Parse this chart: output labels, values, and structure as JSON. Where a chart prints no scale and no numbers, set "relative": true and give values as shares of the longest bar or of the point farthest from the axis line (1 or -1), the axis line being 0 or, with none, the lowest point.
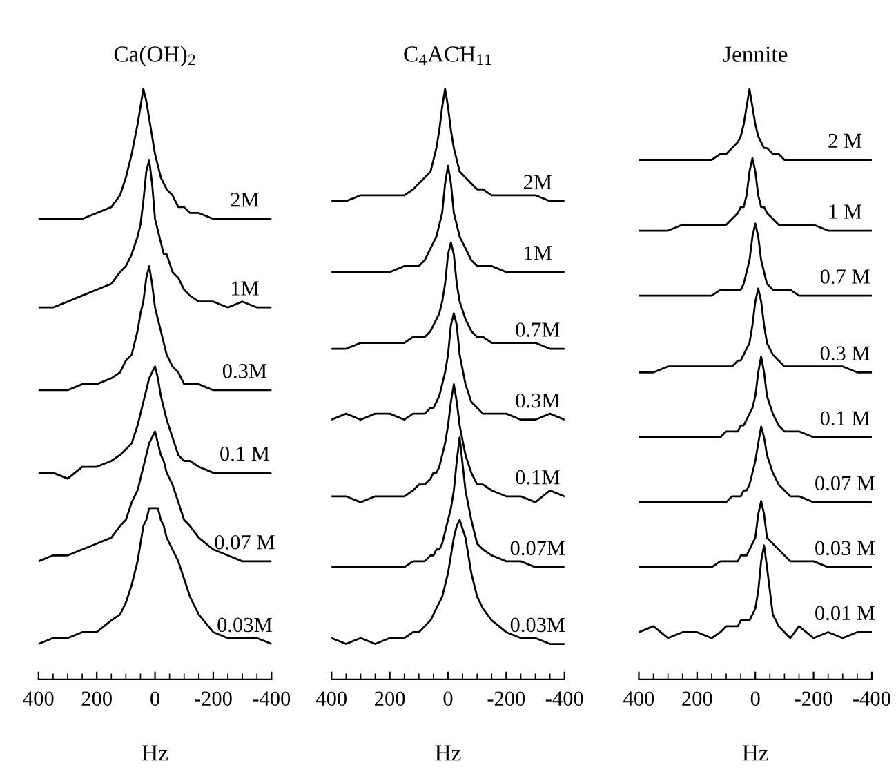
{
  "chart_data": [
    {
      "type": "line",
      "title": "Ca(OH)$_{2}$",
      "xlabel": "Hz",
      "relative": true,
      "legend": false,
      "grid": false,
      "x": [
        400,
        350,
        300,
        250,
        200,
        150,
        120,
        100,
        80,
        60,
        50,
        40,
        30,
        20,
        10,
        0,
        -10,
        -20,
        -30,
        -40,
        -60,
        -80,
        -100,
        -120,
        -150,
        -200,
        -250,
        -300,
        -350,
        -400
      ],
      "xlim": [
        400,
        -400
      ],
      "xticks": [
        400,
        {
          "value": 350,
          "label": null
        },
        {
          "value": 300,
          "label": null
        },
        {
          "value": 250,
          "label": null
        },
        200,
        {
          "value": 150,
          "label": null
        },
        {
          "value": 100,
          "label": null
        },
        {
          "value": 50,
          "label": null
        },
        0,
        {
          "value": -50,
          "label": null
        },
        {
          "value": -100,
          "label": null
        },
        {
          "value": -150,
          "label": null
        },
        -200,
        {
          "value": -250,
          "label": null
        },
        {
          "value": -300,
          "label": null
        },
        {
          "value": -350,
          "label": null
        },
        -400
      ],
      "tick_labels": "x",
      "series": [
        {
          "name": "2M",
          "color": "#000000",
          "values": [
            0.78,
            0.78,
            0.78,
            0.78,
            0.79,
            0.8,
            0.82,
            0.85,
            0.89,
            0.94,
            0.97,
            1.0,
            0.98,
            0.95,
            0.92,
            0.89,
            0.87,
            0.85,
            0.84,
            0.83,
            0.82,
            0.8,
            0.8,
            0.79,
            0.79,
            0.78,
            0.78,
            0.78,
            0.78,
            0.78
          ]
        },
        {
          "name": "1M",
          "color": "#000000",
          "values": [
            0.63,
            0.63,
            0.64,
            0.65,
            0.66,
            0.67,
            0.69,
            0.7,
            0.72,
            0.75,
            0.77,
            0.81,
            0.86,
            0.88,
            0.84,
            0.78,
            0.76,
            0.74,
            0.72,
            0.72,
            0.69,
            0.68,
            0.66,
            0.65,
            0.64,
            0.64,
            0.63,
            0.64,
            0.63,
            0.63
          ]
        },
        {
          "name": "0.3M",
          "color": "#000000",
          "values": [
            0.49,
            0.49,
            0.49,
            0.5,
            0.5,
            0.51,
            0.52,
            0.54,
            0.55,
            0.59,
            0.62,
            0.64,
            0.68,
            0.7,
            0.67,
            0.63,
            0.61,
            0.59,
            0.57,
            0.55,
            0.53,
            0.52,
            0.5,
            0.5,
            0.5,
            0.49,
            0.49,
            0.49,
            0.49,
            0.49
          ]
        },
        {
          "name": "0.1 M",
          "color": "#000000",
          "values": [
            0.35,
            0.35,
            0.34,
            0.36,
            0.36,
            0.37,
            0.38,
            0.39,
            0.4,
            0.43,
            0.45,
            0.47,
            0.49,
            0.51,
            0.52,
            0.53,
            0.51,
            0.48,
            0.46,
            0.44,
            0.41,
            0.38,
            0.37,
            0.37,
            0.36,
            0.35,
            0.35,
            0.35,
            0.35,
            0.35
          ]
        },
        {
          "name": "0.07 M",
          "color": "#000000",
          "values": [
            0.2,
            0.21,
            0.21,
            0.22,
            0.23,
            0.24,
            0.26,
            0.27,
            0.3,
            0.32,
            0.34,
            0.36,
            0.38,
            0.4,
            0.41,
            0.42,
            0.4,
            0.38,
            0.37,
            0.35,
            0.33,
            0.3,
            0.27,
            0.26,
            0.24,
            0.22,
            0.21,
            0.2,
            0.2,
            0.2
          ]
        },
        {
          "name": "0.03M",
          "color": "#000000",
          "values": [
            0.06,
            0.07,
            0.07,
            0.08,
            0.08,
            0.1,
            0.11,
            0.13,
            0.16,
            0.2,
            0.23,
            0.26,
            0.27,
            0.29,
            0.29,
            0.29,
            0.29,
            0.27,
            0.26,
            0.24,
            0.22,
            0.2,
            0.17,
            0.14,
            0.11,
            0.08,
            0.07,
            0.07,
            0.07,
            0.06
          ]
        }
      ]
    },
    {
      "type": "line",
      "title": "C$_{4}$AC̄H$_{11}$",
      "xlabel": "Hz",
      "relative": true,
      "legend": false,
      "grid": false,
      "x": [
        400,
        350,
        300,
        250,
        200,
        150,
        120,
        100,
        80,
        60,
        50,
        40,
        30,
        20,
        10,
        0,
        -10,
        -20,
        -30,
        -40,
        -60,
        -80,
        -100,
        -120,
        -150,
        -200,
        -250,
        -300,
        -350,
        -400
      ],
      "xlim": [
        400,
        -400
      ],
      "xticks": [
        400,
        {
          "value": 350,
          "label": null
        },
        {
          "value": 300,
          "label": null
        },
        {
          "value": 250,
          "label": null
        },
        200,
        {
          "value": 150,
          "label": null
        },
        {
          "value": 100,
          "label": null
        },
        {
          "value": 50,
          "label": null
        },
        0,
        {
          "value": -50,
          "label": null
        },
        {
          "value": -100,
          "label": null
        },
        {
          "value": -150,
          "label": null
        },
        -200,
        {
          "value": -250,
          "label": null
        },
        {
          "value": -300,
          "label": null
        },
        {
          "value": -350,
          "label": null
        },
        -400
      ],
      "tick_labels": "x",
      "series": [
        {
          "name": "2M",
          "color": "#000000",
          "values": [
            0.81,
            0.81,
            0.82,
            0.82,
            0.82,
            0.82,
            0.83,
            0.84,
            0.85,
            0.86,
            0.88,
            0.9,
            0.93,
            0.97,
            1.0,
            0.97,
            0.93,
            0.9,
            0.88,
            0.86,
            0.85,
            0.84,
            0.83,
            0.83,
            0.82,
            0.82,
            0.82,
            0.82,
            0.81,
            0.81
          ]
        },
        {
          "name": "1M",
          "color": "#000000",
          "values": [
            0.69,
            0.69,
            0.69,
            0.69,
            0.69,
            0.7,
            0.7,
            0.7,
            0.71,
            0.73,
            0.74,
            0.75,
            0.77,
            0.79,
            0.84,
            0.87,
            0.84,
            0.79,
            0.77,
            0.75,
            0.73,
            0.71,
            0.7,
            0.7,
            0.7,
            0.69,
            0.69,
            0.69,
            0.69,
            0.69
          ]
        },
        {
          "name": "0.7M",
          "color": "#000000",
          "values": [
            0.56,
            0.56,
            0.57,
            0.57,
            0.57,
            0.57,
            0.58,
            0.58,
            0.58,
            0.59,
            0.6,
            0.61,
            0.62,
            0.64,
            0.67,
            0.72,
            0.74,
            0.72,
            0.67,
            0.64,
            0.61,
            0.59,
            0.58,
            0.58,
            0.57,
            0.57,
            0.57,
            0.57,
            0.56,
            0.56
          ]
        },
        {
          "name": "0.3M",
          "color": "#000000",
          "values": [
            0.44,
            0.45,
            0.44,
            0.45,
            0.45,
            0.44,
            0.45,
            0.45,
            0.45,
            0.46,
            0.46,
            0.47,
            0.48,
            0.5,
            0.52,
            0.55,
            0.6,
            0.62,
            0.6,
            0.55,
            0.5,
            0.47,
            0.46,
            0.45,
            0.45,
            0.45,
            0.44,
            0.44,
            0.45,
            0.44
          ]
        },
        {
          "name": "0.1M",
          "color": "#000000",
          "values": [
            0.31,
            0.31,
            0.3,
            0.31,
            0.31,
            0.31,
            0.32,
            0.33,
            0.33,
            0.34,
            0.35,
            0.35,
            0.36,
            0.38,
            0.4,
            0.43,
            0.47,
            0.5,
            0.47,
            0.43,
            0.38,
            0.35,
            0.33,
            0.33,
            0.32,
            0.31,
            0.31,
            0.3,
            0.32,
            0.31
          ]
        },
        {
          "name": "0.07M",
          "color": "#000000",
          "values": [
            0.19,
            0.19,
            0.19,
            0.19,
            0.19,
            0.19,
            0.2,
            0.2,
            0.2,
            0.21,
            0.21,
            0.22,
            0.22,
            0.23,
            0.25,
            0.27,
            0.29,
            0.32,
            0.37,
            0.41,
            0.32,
            0.27,
            0.23,
            0.22,
            0.21,
            0.2,
            0.2,
            0.19,
            0.19,
            0.19
          ]
        },
        {
          "name": "0.03M",
          "color": "#000000",
          "values": [
            0.07,
            0.06,
            0.07,
            0.06,
            0.07,
            0.07,
            0.08,
            0.08,
            0.09,
            0.1,
            0.11,
            0.12,
            0.13,
            0.14,
            0.16,
            0.18,
            0.21,
            0.24,
            0.26,
            0.27,
            0.24,
            0.18,
            0.14,
            0.12,
            0.1,
            0.08,
            0.07,
            0.07,
            0.06,
            0.06
          ]
        }
      ]
    },
    {
      "type": "line",
      "title": "Jennite",
      "xlabel": "Hz",
      "relative": true,
      "legend": false,
      "grid": false,
      "x": [
        400,
        350,
        300,
        250,
        200,
        150,
        120,
        100,
        80,
        60,
        50,
        40,
        30,
        20,
        10,
        0,
        -10,
        -20,
        -30,
        -40,
        -60,
        -80,
        -100,
        -120,
        -150,
        -200,
        -250,
        -300,
        -350,
        -400
      ],
      "xlim": [
        400,
        -400
      ],
      "xticks": [
        400,
        {
          "value": 350,
          "label": null
        },
        {
          "value": 300,
          "label": null
        },
        {
          "value": 250,
          "label": null
        },
        200,
        {
          "value": 150,
          "label": null
        },
        {
          "value": 100,
          "label": null
        },
        {
          "value": 50,
          "label": null
        },
        0,
        {
          "value": -50,
          "label": null
        },
        {
          "value": -100,
          "label": null
        },
        {
          "value": -150,
          "label": null
        },
        -200,
        {
          "value": -250,
          "label": null
        },
        {
          "value": -300,
          "label": null
        },
        {
          "value": -350,
          "label": null
        },
        -400
      ],
      "tick_labels": "x",
      "series": [
        {
          "name": "2 M",
          "color": "#000000",
          "values": [
            0.88,
            0.88,
            0.88,
            0.88,
            0.88,
            0.88,
            0.89,
            0.89,
            0.9,
            0.91,
            0.92,
            0.94,
            0.97,
            1.0,
            0.97,
            0.94,
            0.92,
            0.91,
            0.9,
            0.9,
            0.89,
            0.89,
            0.88,
            0.88,
            0.88,
            0.88,
            0.88,
            0.88,
            0.88,
            0.88
          ]
        },
        {
          "name": "1 M",
          "color": "#000000",
          "values": [
            0.76,
            0.76,
            0.76,
            0.77,
            0.77,
            0.77,
            0.77,
            0.77,
            0.78,
            0.79,
            0.8,
            0.8,
            0.82,
            0.86,
            0.883,
            0.86,
            0.82,
            0.8,
            0.8,
            0.79,
            0.78,
            0.77,
            0.77,
            0.77,
            0.77,
            0.77,
            0.76,
            0.76,
            0.76,
            0.76
          ]
        },
        {
          "name": "0.7 M",
          "color": "#000000",
          "values": [
            0.65,
            0.65,
            0.65,
            0.65,
            0.65,
            0.65,
            0.66,
            0.66,
            0.66,
            0.66,
            0.66,
            0.67,
            0.69,
            0.71,
            0.75,
            0.772,
            0.75,
            0.71,
            0.69,
            0.67,
            0.66,
            0.66,
            0.66,
            0.66,
            0.65,
            0.65,
            0.65,
            0.65,
            0.65,
            0.65
          ]
        },
        {
          "name": "0.3 M",
          "color": "#000000",
          "values": [
            0.52,
            0.52,
            0.53,
            0.53,
            0.53,
            0.53,
            0.53,
            0.53,
            0.53,
            0.54,
            0.54,
            0.55,
            0.56,
            0.57,
            0.6,
            0.64,
            0.662,
            0.64,
            0.6,
            0.57,
            0.55,
            0.54,
            0.53,
            0.53,
            0.53,
            0.53,
            0.53,
            0.53,
            0.52,
            0.52
          ]
        },
        {
          "name": "0.1 M",
          "color": "#000000",
          "values": [
            0.41,
            0.41,
            0.41,
            0.41,
            0.41,
            0.41,
            0.41,
            0.42,
            0.42,
            0.42,
            0.43,
            0.43,
            0.44,
            0.45,
            0.46,
            0.48,
            0.52,
            0.547,
            0.52,
            0.48,
            0.45,
            0.43,
            0.42,
            0.42,
            0.42,
            0.41,
            0.41,
            0.41,
            0.41,
            0.41
          ]
        },
        {
          "name": "0.07 M",
          "color": "#000000",
          "values": [
            0.3,
            0.3,
            0.3,
            0.3,
            0.3,
            0.3,
            0.3,
            0.3,
            0.31,
            0.31,
            0.31,
            0.32,
            0.32,
            0.33,
            0.35,
            0.37,
            0.4,
            0.428,
            0.41,
            0.38,
            0.35,
            0.33,
            0.32,
            0.31,
            0.31,
            0.3,
            0.3,
            0.3,
            0.3,
            0.3
          ]
        },
        {
          "name": "0.03 M",
          "color": "#000000",
          "values": [
            0.19,
            0.19,
            0.19,
            0.19,
            0.19,
            0.19,
            0.2,
            0.2,
            0.2,
            0.2,
            0.21,
            0.21,
            0.21,
            0.22,
            0.23,
            0.24,
            0.28,
            0.302,
            0.28,
            0.24,
            0.23,
            0.22,
            0.21,
            0.2,
            0.2,
            0.2,
            0.19,
            0.19,
            0.19,
            0.19
          ]
        },
        {
          "name": "0.01 M",
          "color": "#000000",
          "values": [
            0.08,
            0.09,
            0.07,
            0.08,
            0.08,
            0.07,
            0.08,
            0.09,
            0.09,
            0.09,
            0.1,
            0.1,
            0.1,
            0.1,
            0.11,
            0.12,
            0.15,
            0.2,
            0.227,
            0.19,
            0.11,
            0.09,
            0.08,
            0.07,
            0.09,
            0.07,
            0.08,
            0.07,
            0.08,
            0.08
          ]
        }
      ]
    }
  ]
}
